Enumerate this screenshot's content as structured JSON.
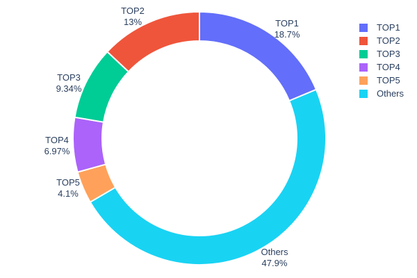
{
  "chart_data": {
    "type": "pie",
    "subtype": "donut",
    "title": "",
    "labels": [
      "TOP1",
      "TOP2",
      "TOP3",
      "TOP4",
      "TOP5",
      "Others"
    ],
    "values": [
      18.7,
      13,
      9.34,
      6.97,
      4.1,
      47.9
    ],
    "colors": [
      "#636efa",
      "#ef553b",
      "#00cc96",
      "#ab63fa",
      "#ffa15a",
      "#19d3f3"
    ],
    "hole_ratio": 0.77,
    "clockwise_order_from_top": [
      "TOP1",
      "Others",
      "TOP5",
      "TOP4",
      "TOP3",
      "TOP2"
    ],
    "separator_color": "#ffffff",
    "text_color": "#2a3f5f",
    "legend_position": "top-right",
    "outside_labels": [
      {
        "label": "TOP1",
        "pct": "18.7%"
      },
      {
        "label": "TOP2",
        "pct": "13%"
      },
      {
        "label": "TOP3",
        "pct": "9.34%"
      },
      {
        "label": "TOP4",
        "pct": "6.97%"
      },
      {
        "label": "TOP5",
        "pct": "4.1%"
      },
      {
        "label": "Others",
        "pct": "47.9%"
      }
    ],
    "legend_entries": [
      "TOP1",
      "TOP2",
      "TOP3",
      "TOP4",
      "TOP5",
      "Others"
    ]
  }
}
